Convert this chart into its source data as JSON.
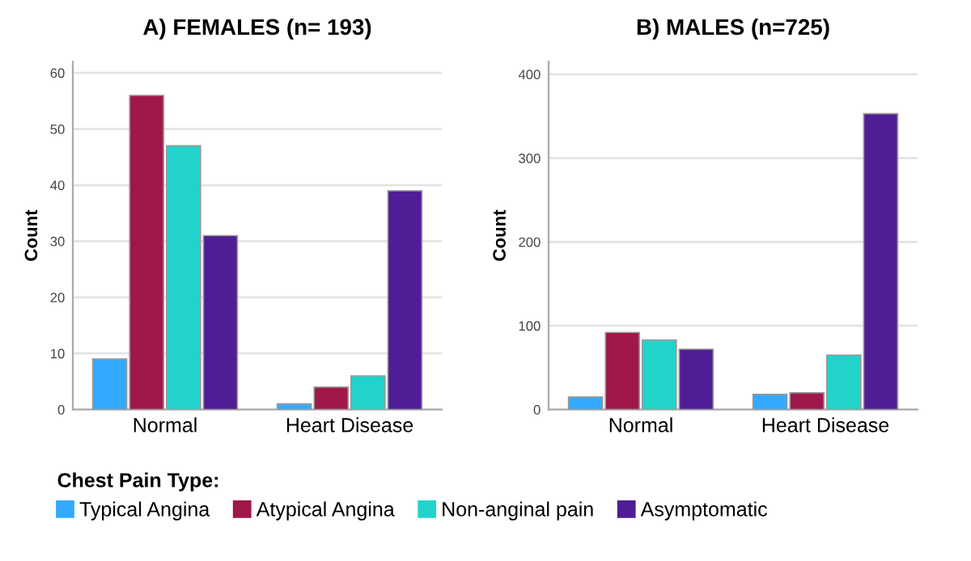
{
  "chart_data": [
    {
      "type": "bar",
      "title": "A) FEMALES (n= 193)",
      "ylabel": "Count",
      "categories": [
        "Normal",
        "Heart Disease"
      ],
      "ylim": [
        0,
        62
      ],
      "yticks": [
        0,
        10,
        20,
        30,
        40,
        50,
        60
      ],
      "grid": "y",
      "legend": "bottom",
      "legend_title": "Chest Pain Type:",
      "series": [
        {
          "name": "Typical Angina",
          "color": "#33aaff",
          "values": [
            9,
            1
          ]
        },
        {
          "name": "Atypical Angina",
          "color": "#a0174a",
          "values": [
            56,
            4
          ]
        },
        {
          "name": "Non-anginal pain",
          "color": "#22d3cc",
          "values": [
            47,
            6
          ]
        },
        {
          "name": "Asymptomatic",
          "color": "#4f1d96",
          "values": [
            31,
            39
          ]
        }
      ]
    },
    {
      "type": "bar",
      "title": "B) MALES (n=725)",
      "ylabel": "Count",
      "categories": [
        "Normal",
        "Heart Disease"
      ],
      "ylim": [
        0,
        415
      ],
      "yticks": [
        0,
        100,
        200,
        300,
        400
      ],
      "grid": "y",
      "series": [
        {
          "color": "#33aaff",
          "values": [
            15,
            18
          ]
        },
        {
          "color": "#a0174a",
          "values": [
            92,
            20
          ]
        },
        {
          "color": "#22d3cc",
          "values": [
            83,
            65
          ]
        },
        {
          "color": "#4f1d96",
          "values": [
            72,
            353
          ]
        }
      ]
    }
  ]
}
